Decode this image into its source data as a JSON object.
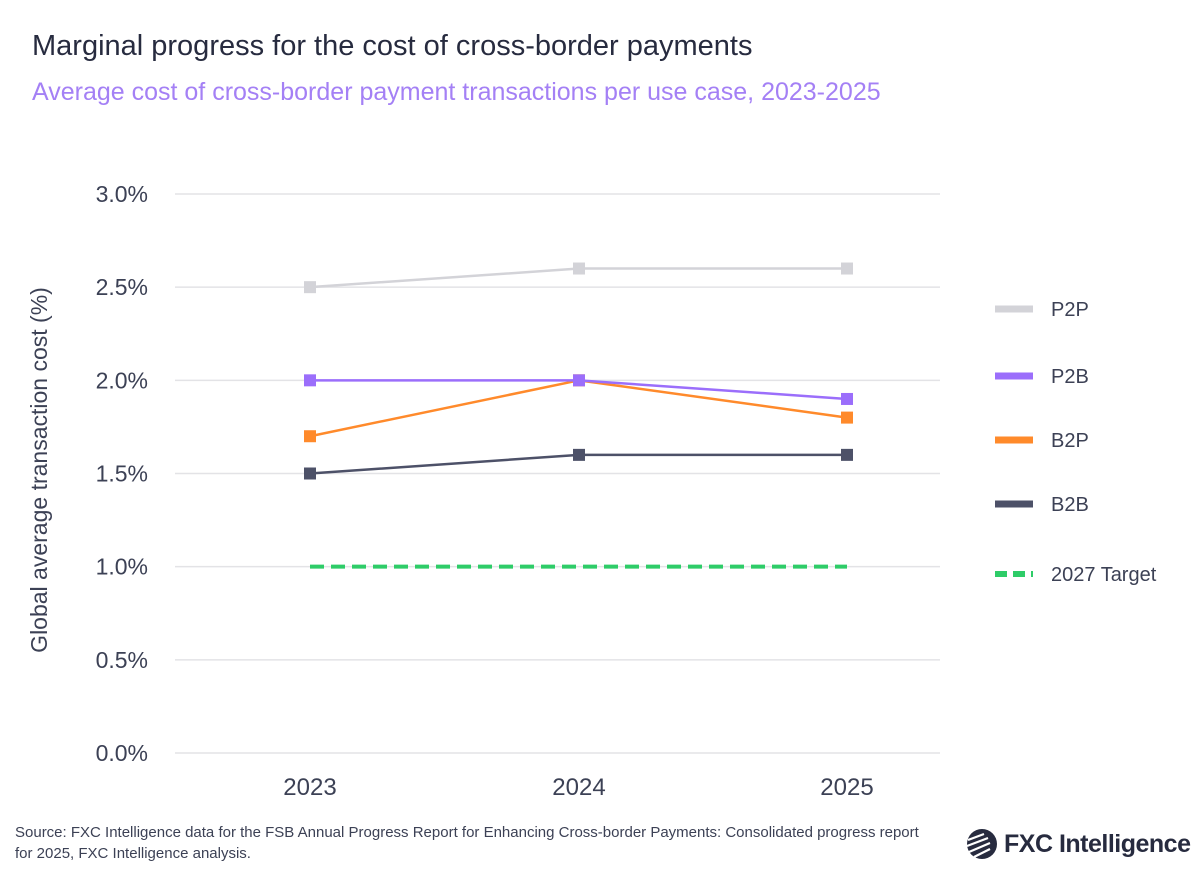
{
  "header": {
    "title": "Marginal progress for the cost of cross-border payments",
    "subtitle": "Average cost of cross-border payment transactions per use case, 2023-2025"
  },
  "footer": {
    "source": "Source: FXC Intelligence data for the FSB Annual Progress Report for Enhancing Cross-border Payments: Consolidated progress report for 2025, FXC Intelligence analysis.",
    "logo_text": "FXC Intelligence"
  },
  "chart_data": {
    "type": "line",
    "title": "Marginal progress for the cost of cross-border payments",
    "subtitle": "Average cost of cross-border payment transactions per use case, 2023-2025",
    "xlabel": "",
    "ylabel": "Global average transaction cost (%)",
    "categories": [
      "2023",
      "2024",
      "2025"
    ],
    "ylim": [
      0,
      3.0
    ],
    "yticks": [
      "0.0%",
      "0.5%",
      "1.0%",
      "1.5%",
      "2.0%",
      "2.5%",
      "3.0%"
    ],
    "ytick_values": [
      0,
      0.5,
      1.0,
      1.5,
      2.0,
      2.5,
      3.0
    ],
    "grid": true,
    "legend": "right",
    "series": [
      {
        "name": "P2P",
        "values": [
          2.5,
          2.6,
          2.6
        ],
        "color": "#d3d3d8",
        "style": "solid",
        "marker": "square"
      },
      {
        "name": "P2B",
        "values": [
          2.0,
          2.0,
          1.9
        ],
        "color": "#9b6efb",
        "style": "solid",
        "marker": "square"
      },
      {
        "name": "B2P",
        "values": [
          1.7,
          2.0,
          1.8
        ],
        "color": "#ff8a2b",
        "style": "solid",
        "marker": "square"
      },
      {
        "name": "B2B",
        "values": [
          1.5,
          1.6,
          1.6
        ],
        "color": "#4d5168",
        "style": "solid",
        "marker": "square"
      },
      {
        "name": "2027 Target",
        "values": [
          1.0,
          1.0,
          1.0
        ],
        "color": "#2ecc68",
        "style": "dashed",
        "marker": "none"
      }
    ]
  }
}
